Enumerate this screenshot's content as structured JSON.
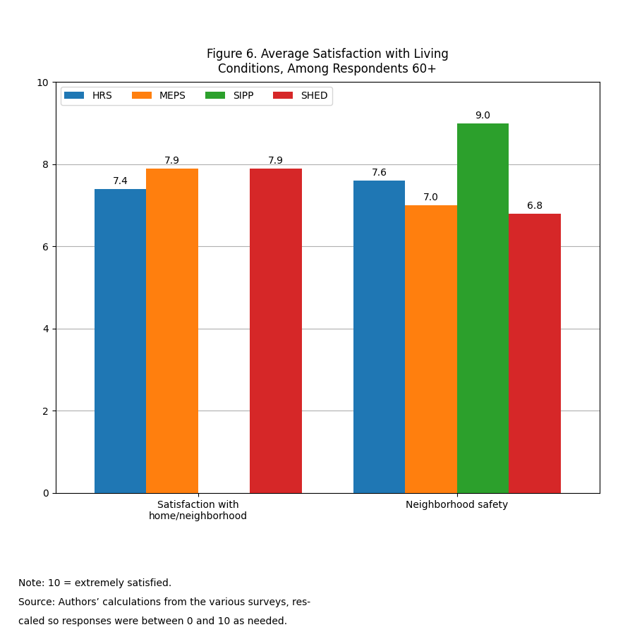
{
  "chart_data": {
    "type": "bar",
    "title": "Figure 6. Average Satisfaction with Living\nConditions, Among Respondents 60+",
    "categories": [
      "Satisfaction with\nhome/neighborhood",
      "Neighborhood safety"
    ],
    "series": [
      {
        "name": "HRS",
        "values": [
          7.4,
          7.6
        ]
      },
      {
        "name": "MEPS",
        "values": [
          7.9,
          7.0
        ]
      },
      {
        "name": "SIPP",
        "values": [
          null,
          9.0
        ]
      },
      {
        "name": "SHED",
        "values": [
          7.9,
          6.8
        ]
      }
    ],
    "ylim": [
      0,
      10
    ],
    "yticks": [
      0,
      2,
      4,
      6,
      8,
      10
    ],
    "grid": true,
    "legend": "upper left",
    "data_labels": true,
    "notes": [
      "Note: 10 = extremely satisfied.",
      "Source: Authors’ calculations from the various surveys, res-",
      "caled so responses were between 0 and 10 as needed."
    ]
  }
}
